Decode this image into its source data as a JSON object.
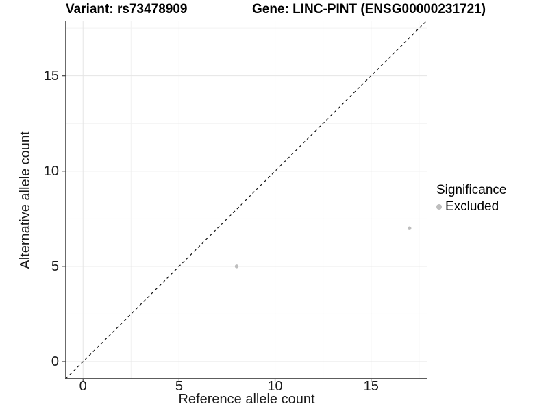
{
  "title": {
    "variant": "Variant: rs73478909",
    "gene": "Gene: LINC-PINT (ENSG00000231721)"
  },
  "legend": {
    "title": "Significance",
    "items": [
      {
        "label": "Excluded",
        "color": "#bebebe"
      }
    ]
  },
  "chart_data": {
    "type": "scatter",
    "title": "Variant: rs73478909 | Gene: LINC-PINT (ENSG00000231721)",
    "xlabel": "Reference allele count",
    "ylabel": "Alternative allele count",
    "xlim": [
      -0.9,
      17.9
    ],
    "ylim": [
      -0.9,
      17.9
    ],
    "x_ticks": [
      0,
      5,
      10,
      15
    ],
    "y_ticks": [
      0,
      5,
      10,
      15
    ],
    "x_minor_ticks": [
      2.5,
      7.5,
      12.5,
      17.5
    ],
    "y_minor_ticks": [
      2.5,
      7.5,
      12.5,
      17.5
    ],
    "grid": true,
    "legend_position": "right",
    "series": [
      {
        "name": "Excluded",
        "color": "#bebebe",
        "points": [
          [
            8,
            5
          ],
          [
            17,
            7
          ]
        ]
      }
    ],
    "reference_line": {
      "type": "identity y=x",
      "style": "dashed",
      "color": "#111111"
    }
  },
  "colors": {
    "background": "#ffffff",
    "grid_major": "#e5e5e5",
    "grid_minor": "#f2f2f2",
    "axis_line": "#464646",
    "text": "#000000",
    "excluded_point": "#bebebe"
  }
}
